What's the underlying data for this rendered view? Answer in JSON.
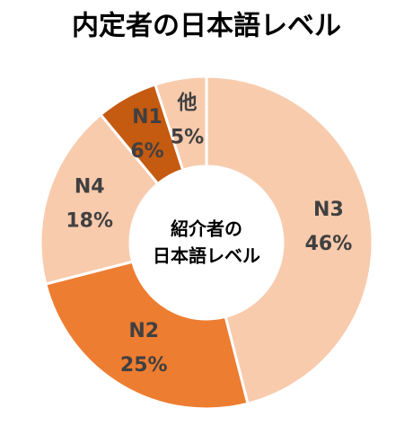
{
  "chart_data": {
    "type": "donut",
    "title": "内定者の日本語レベル",
    "center_label": [
      "紹介者の",
      "日本語レベル"
    ],
    "categories": [
      "N3",
      "N2",
      "N4",
      "N1",
      "他"
    ],
    "values": [
      46,
      25,
      18,
      6,
      5
    ],
    "value_labels": [
      "46%",
      "25%",
      "18%",
      "6%",
      "5%"
    ],
    "colors": [
      "#f8cbad",
      "#ed7d31",
      "#f8cbad",
      "#c55a11",
      "#f8cbad"
    ]
  }
}
